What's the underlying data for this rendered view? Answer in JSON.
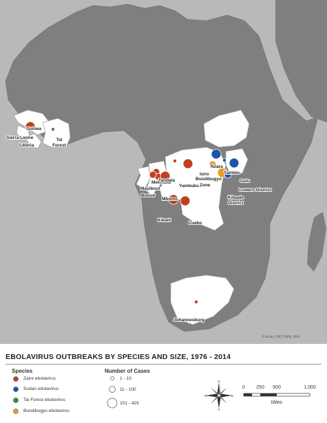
{
  "title": "EBOLAVIRUS OUTBREAKS BY SPECIES AND SIZE, 1976 - 2014",
  "credit": "E.Ervin, CDC/VSPB, 2014",
  "colors": {
    "ocean": "#b9b9b9",
    "land": "#7f7f7f",
    "affected_country": "#ffffff",
    "border": "#9a9a9a",
    "zaire": "#c0401f",
    "sudan": "#1f55a6",
    "tai_forest": "#3f8c3c",
    "bundibugyo": "#e79b2c"
  },
  "legend": {
    "species_heading": "Species",
    "species": [
      {
        "key": "zaire",
        "label": "Zaire ebolavirus",
        "color": "#c0401f"
      },
      {
        "key": "sudan",
        "label": "Sudan ebolavirus",
        "color": "#1f55a6"
      },
      {
        "key": "tai_forest",
        "label": "Tai Forest ebolavirus",
        "color": "#3f8c3c"
      },
      {
        "key": "bundibugyo",
        "label": "Bundibugyo ebolavirus",
        "color": "#e79b2c"
      }
    ],
    "cases_heading": "Number of Cases",
    "case_sizes": [
      {
        "label": "1 - 10",
        "size_class": "small"
      },
      {
        "label": "11 - 100",
        "size_class": "medium"
      },
      {
        "label": "101 - 425",
        "size_class": "large"
      }
    ]
  },
  "compass": {
    "n": "N",
    "s": "S",
    "e": "E",
    "w": "W"
  },
  "scale_bar": {
    "ticks": [
      "0",
      "250",
      "500",
      "1,000"
    ],
    "unit": "Miles"
  },
  "locations": [
    {
      "name": "Guinea"
    },
    {
      "name": "Sierra Leone"
    },
    {
      "name": "Liberia"
    },
    {
      "name": "Tai Forest"
    },
    {
      "name": "Mekouka"
    },
    {
      "name": "Mayibout"
    },
    {
      "name": "Booué"
    },
    {
      "name": "Mbomo"
    },
    {
      "name": "Tandala"
    },
    {
      "name": "Yambuku"
    },
    {
      "name": "Isiro Health Zone"
    },
    {
      "name": "Nzara"
    },
    {
      "name": "Yambio"
    },
    {
      "name": "Gulu"
    },
    {
      "name": "Bundibugyo"
    },
    {
      "name": "Luwero District"
    },
    {
      "name": "Kibaale District"
    },
    {
      "name": "Kikwit"
    },
    {
      "name": "Luebo"
    },
    {
      "name": "Johannesburg"
    }
  ],
  "outbreak_markers": [
    {
      "place": "Guinea / Sierra Leone / Liberia",
      "species": "zaire",
      "size_class": "large"
    },
    {
      "place": "Tai Forest",
      "species": "tai_forest",
      "size_class": "small"
    },
    {
      "place": "Mekouka",
      "species": "zaire",
      "size_class": "medium"
    },
    {
      "place": "Mayibout",
      "species": "zaire",
      "size_class": "medium"
    },
    {
      "place": "Booué",
      "species": "zaire",
      "size_class": "medium"
    },
    {
      "place": "Mbomo",
      "species": "zaire",
      "size_class": "large"
    },
    {
      "place": "Tandala",
      "species": "zaire",
      "size_class": "small"
    },
    {
      "place": "Yambuku",
      "species": "zaire",
      "size_class": "large"
    },
    {
      "place": "Isiro Health Zone",
      "species": "bundibugyo",
      "size_class": "medium"
    },
    {
      "place": "Nzara",
      "species": "sudan",
      "size_class": "large"
    },
    {
      "place": "Yambio",
      "species": "sudan",
      "size_class": "small"
    },
    {
      "place": "Gulu",
      "species": "sudan",
      "size_class": "large"
    },
    {
      "place": "Bundibugyo",
      "species": "bundibugyo",
      "size_class": "large"
    },
    {
      "place": "Luwero District",
      "species": "sudan",
      "size_class": "small"
    },
    {
      "place": "Kibaale District",
      "species": "sudan",
      "size_class": "medium"
    },
    {
      "place": "Kikwit",
      "species": "zaire",
      "size_class": "large"
    },
    {
      "place": "Luebo",
      "species": "zaire",
      "size_class": "large"
    },
    {
      "place": "Johannesburg",
      "species": "zaire",
      "size_class": "small"
    }
  ]
}
